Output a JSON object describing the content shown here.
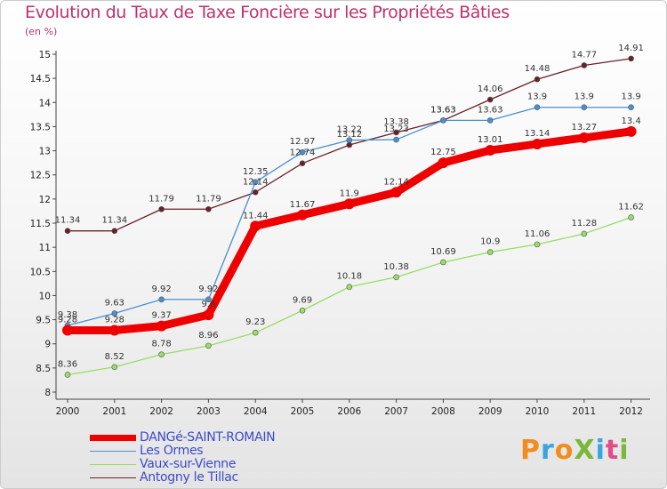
{
  "title": "Evolution du Taux de Taxe Foncière sur les Propriétés Bâties",
  "unit": "(en %)",
  "logo": {
    "text": "ProXiti",
    "colors": [
      "#f28c1e",
      "#3aa3e0",
      "#f28c1e",
      "#7ab83a",
      "#3aa3e0",
      "#e34b8a",
      "#7ab83a"
    ]
  },
  "chart_data": {
    "type": "line",
    "title": "Evolution du Taux de Taxe Foncière sur les Propriétés Bâties",
    "ylabel": "(en %)",
    "xlabel": "",
    "ylim": [
      8,
      15
    ],
    "yticks": [
      8,
      8.5,
      9,
      9.5,
      10,
      10.5,
      11,
      11.5,
      12,
      12.5,
      13,
      13.5,
      14,
      14.5,
      15
    ],
    "categories": [
      "2000",
      "2001",
      "2002",
      "2003",
      "2004",
      "2005",
      "2006",
      "2007",
      "2008",
      "2009",
      "2010",
      "2011",
      "2012"
    ],
    "series": [
      {
        "name": "Antogny le Tillac",
        "color": "#6b1f2a",
        "values": [
          11.34,
          11.34,
          11.79,
          11.79,
          12.14,
          12.74,
          13.12,
          13.38,
          13.63,
          14.06,
          14.48,
          14.77,
          14.91
        ]
      },
      {
        "name": "Les Ormes",
        "color": "#4a90d0",
        "values": [
          9.38,
          9.63,
          9.92,
          9.92,
          12.35,
          12.97,
          13.22,
          13.23,
          13.63,
          13.63,
          13.9,
          13.9,
          13.9
        ]
      },
      {
        "name": "Vaux-sur-Vienne",
        "color": "#99dd66",
        "values": [
          8.36,
          8.52,
          8.78,
          8.96,
          9.23,
          9.69,
          10.18,
          10.38,
          10.69,
          10.9,
          11.06,
          11.28,
          11.62
        ]
      },
      {
        "name": "DANGé-SAINT-ROMAIN",
        "color": "#ee0000",
        "values": [
          9.28,
          9.28,
          9.37,
          9.6,
          11.44,
          11.67,
          11.9,
          12.14,
          12.75,
          13.01,
          13.14,
          13.27,
          13.4
        ]
      }
    ],
    "data_labels": [
      {
        "series": "Antogny le Tillac",
        "labels": [
          "11.34",
          "11.34",
          "11.79",
          "11.79",
          "12.14",
          "12.74",
          "13.12",
          "13.38",
          "13.63",
          "14.06",
          "14.48",
          "14.77",
          "14.91"
        ]
      },
      {
        "series": "Les Ormes",
        "labels": [
          "9.38",
          "9.63",
          "9.92",
          "9.92",
          "12.35",
          "12.97",
          "13.22",
          "13.23",
          "13.63",
          "13.63",
          "13.9",
          "13.9",
          "13.9"
        ]
      },
      {
        "series": "Vaux-sur-Vienne",
        "labels": [
          "8.36",
          "8.52",
          "8.78",
          "8.96",
          "9.23",
          "9.69",
          "10.18",
          "10.38",
          "10.69",
          "10.9",
          "11.06",
          "11.28",
          "11.62"
        ]
      },
      {
        "series": "DANGé-SAINT-ROMAIN",
        "labels": [
          "9.28",
          "9.28",
          "9.37",
          "9.6",
          "11.44",
          "11.67",
          "11.9",
          "12.14",
          "12.75",
          "13.01",
          "13.14",
          "13.27",
          "13.4"
        ]
      }
    ],
    "legend": [
      {
        "label": "DANGé-SAINT-ROMAIN",
        "color": "#ee0000",
        "style": "thick"
      },
      {
        "label": "Les Ormes",
        "color": "#4a90d0",
        "style": "thin"
      },
      {
        "label": "Vaux-sur-Vienne",
        "color": "#99dd66",
        "style": "thin"
      },
      {
        "label": "Antogny le Tillac",
        "color": "#6b1f2a",
        "style": "thin"
      }
    ],
    "legend_position": "bottom-left"
  }
}
